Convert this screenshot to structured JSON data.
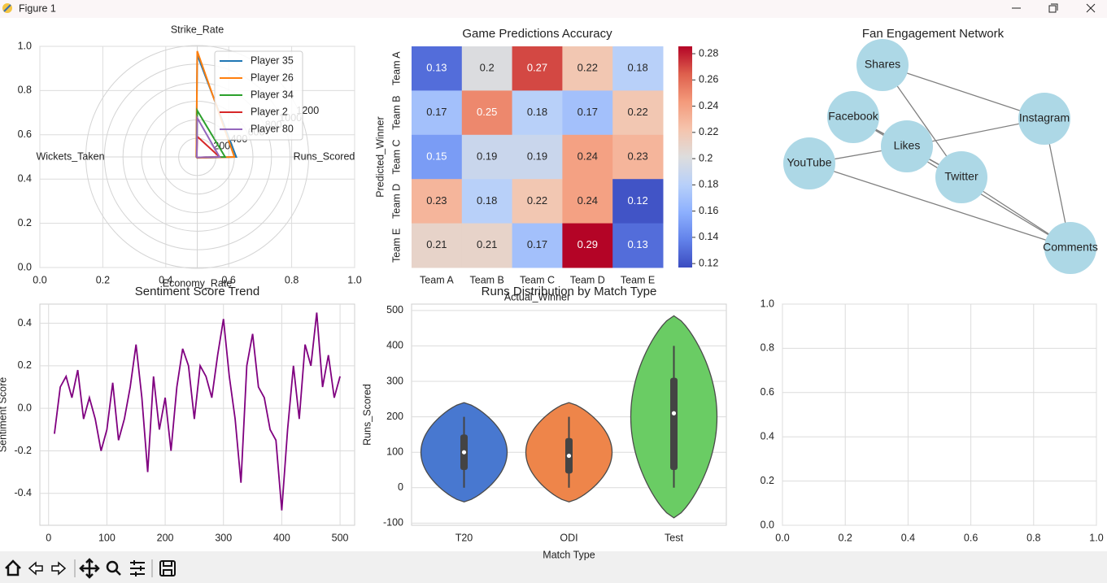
{
  "window": {
    "title": "Figure 1"
  },
  "chart_data": [
    {
      "type": "radar",
      "axes": [
        "Runs_Scored",
        "Strike_Rate",
        "Wickets_Taken",
        "Economy_Rate"
      ],
      "rlim": [
        0,
        1200
      ],
      "rticks": [
        200,
        400,
        600,
        800,
        1000,
        1200
      ],
      "xlim": [
        0,
        1
      ],
      "ylim": [
        0,
        1
      ],
      "xticks": [
        {
          "value": 0,
          "label": "0.0"
        },
        0.2,
        0.4,
        0.6,
        0.8,
        {
          "value": 1,
          "label": "1.0"
        }
      ],
      "yticks": [
        {
          "value": 0,
          "label": "0.0"
        },
        0.2,
        0.4,
        0.6,
        0.8,
        {
          "value": 1,
          "label": "1.0"
        }
      ],
      "grid": true,
      "legend": "upper right",
      "series": [
        {
          "name": "Player 35",
          "color": "#1f77b4",
          "values": [
            420,
            1100,
            10,
            10
          ]
        },
        {
          "name": "Player 26",
          "color": "#ff7f0e",
          "values": [
            400,
            1140,
            10,
            10
          ]
        },
        {
          "name": "Player 34",
          "color": "#2ca02c",
          "values": [
            300,
            500,
            5,
            5
          ]
        },
        {
          "name": "Player 2",
          "color": "#d62728",
          "values": [
            240,
            220,
            5,
            5
          ]
        },
        {
          "name": "Player 80",
          "color": "#9467bd",
          "values": [
            240,
            420,
            5,
            5
          ]
        }
      ]
    },
    {
      "type": "heatmap",
      "title": "Game Predictions Accuracy",
      "x_label": "Actual_Winner",
      "y_label": "Predicted_Winner",
      "x_categories": [
        "Team A",
        "Team B",
        "Team C",
        "Team D",
        "Team E"
      ],
      "y_categories": [
        "Team A",
        "Team B",
        "Team C",
        "Team D",
        "Team E"
      ],
      "values": [
        [
          0.13,
          0.2,
          0.27,
          0.22,
          0.18
        ],
        [
          0.17,
          0.25,
          0.18,
          0.17,
          0.22
        ],
        [
          0.15,
          0.19,
          0.19,
          0.24,
          0.23
        ],
        [
          0.23,
          0.18,
          0.22,
          0.24,
          0.12
        ],
        [
          0.21,
          0.21,
          0.17,
          0.29,
          0.13
        ]
      ],
      "colormap": "coolwarm",
      "zlim": [
        0.117,
        0.2856
      ],
      "zticks": [
        0.12,
        0.14,
        0.16,
        0.18,
        0.2,
        0.22,
        0.24,
        0.26,
        0.28
      ]
    },
    {
      "type": "network",
      "title": "Fan Engagement Network",
      "color": "#add8e6",
      "nodes": [
        "Shares",
        "Facebook",
        "YouTube",
        "Likes",
        "Twitter",
        "Instagram",
        "Comments"
      ],
      "edges": [
        [
          0,
          5
        ],
        [
          0,
          4
        ],
        [
          1,
          3
        ],
        [
          1,
          4
        ],
        [
          1,
          6
        ],
        [
          2,
          3
        ],
        [
          2,
          6
        ],
        [
          3,
          5
        ],
        [
          3,
          4
        ],
        [
          4,
          6
        ],
        [
          5,
          6
        ]
      ]
    },
    {
      "type": "line",
      "title": "Sentiment Score Trend",
      "y_label": "Sentiment Score",
      "color": "#800080",
      "x": [
        10,
        20,
        30,
        40,
        50,
        60,
        70,
        80,
        90,
        100,
        110,
        120,
        130,
        140,
        150,
        160,
        170,
        180,
        190,
        200,
        210,
        220,
        230,
        240,
        250,
        260,
        270,
        280,
        290,
        300,
        310,
        320,
        330,
        340,
        350,
        360,
        370,
        380,
        390,
        400,
        410,
        420,
        430,
        440,
        450,
        460,
        470,
        480,
        490,
        500
      ],
      "values": [
        -0.12,
        0.1,
        0.15,
        0.05,
        0.18,
        -0.05,
        0.05,
        -0.05,
        -0.2,
        -0.1,
        0.12,
        -0.15,
        -0.05,
        0.1,
        0.3,
        0.05,
        -0.3,
        0.15,
        -0.1,
        0.05,
        -0.2,
        0.1,
        0.28,
        0.2,
        -0.05,
        0.2,
        0.15,
        0.05,
        0.25,
        0.42,
        0.15,
        -0.05,
        -0.35,
        0.2,
        0.35,
        0.1,
        0.05,
        -0.1,
        -0.15,
        -0.48,
        -0.1,
        0.2,
        -0.05,
        0.3,
        0.2,
        0.45,
        0.1,
        0.25,
        0.05,
        0.15
      ],
      "xlim": [
        -15,
        525
      ],
      "ylim": [
        -0.55,
        0.49
      ],
      "xticks": [
        0,
        100,
        200,
        300,
        400,
        500
      ],
      "yticks": [
        -0.4,
        -0.2,
        {
          "value": 0,
          "label": "0.0"
        },
        0.2,
        0.4
      ],
      "grid": true
    },
    {
      "type": "violin",
      "title": "Runs Distribution by Match Type",
      "x_label": "Match Type",
      "y_label": "Runs_Scored",
      "categories": [
        "T20",
        "ODI",
        "Test"
      ],
      "colors": [
        "#4878d0",
        "#ee854a",
        "#6acc64"
      ],
      "stats": [
        {
          "min": 0,
          "q1": 50,
          "median": 100,
          "q3": 150,
          "max": 200,
          "extent": [
            -40,
            240
          ]
        },
        {
          "min": 0,
          "q1": 40,
          "median": 90,
          "q3": 140,
          "max": 200,
          "extent": [
            -40,
            240
          ]
        },
        {
          "min": 0,
          "q1": 50,
          "median": 210,
          "q3": 310,
          "max": 400,
          "extent": [
            -85,
            485
          ]
        }
      ],
      "ylim": [
        -106,
        518
      ],
      "yticks": [
        -100,
        0,
        100,
        200,
        300,
        400,
        500
      ],
      "grid": true
    },
    {
      "type": "empty",
      "xlim": [
        0,
        1
      ],
      "ylim": [
        0,
        1
      ],
      "xticks": [
        {
          "value": 0,
          "label": "0.0"
        },
        0.2,
        0.4,
        0.6,
        0.8,
        {
          "value": 1,
          "label": "1.0"
        }
      ],
      "yticks": [
        {
          "value": 0,
          "label": "0.0"
        },
        0.2,
        0.4,
        0.6,
        0.8,
        {
          "value": 1,
          "label": "1.0"
        }
      ],
      "grid": true
    }
  ]
}
